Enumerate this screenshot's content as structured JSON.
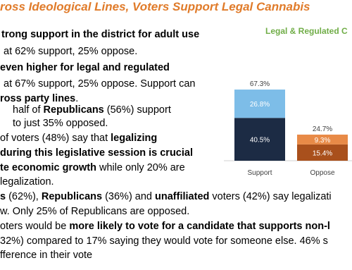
{
  "title": "ross Ideological Lines, Voters Support Legal Cannabis",
  "lines": [
    {
      "runs": [
        {
          "text": "trong support in the district for adult use",
          "bold": true
        }
      ]
    },
    {
      "runs": [
        {
          "text": "at 62% support, 25% oppose.",
          "bold": false
        }
      ]
    },
    {
      "runs": [
        {
          "text": " even higher for legal and regulated",
          "bold": true
        }
      ]
    },
    {
      "runs": [
        {
          "text": "at 67% support, 25% oppose. Support can",
          "bold": false
        }
      ]
    },
    {
      "runs": [
        {
          "text": "ross party lines",
          "bold": true
        },
        {
          "text": ".",
          "bold": false
        }
      ]
    },
    {
      "runs": [
        {
          "text": "half of ",
          "bold": false
        },
        {
          "text": "Republicans",
          "bold": true
        },
        {
          "text": " (56%) support",
          "bold": false
        }
      ]
    },
    {
      "runs": [
        {
          "text": "to just 35% opposed.",
          "bold": false
        }
      ]
    },
    {
      "runs": [
        {
          "text": " of voters (48%) say that ",
          "bold": false
        },
        {
          "text": "legalizing",
          "bold": true
        }
      ]
    },
    {
      "runs": [
        {
          "text": "during this legislative session is crucial",
          "bold": true
        }
      ]
    },
    {
      "runs": [
        {
          "text": "te economic growth",
          "bold": true
        },
        {
          "text": " while only 20% are",
          "bold": false
        }
      ]
    },
    {
      "runs": [
        {
          "text": " legalization.",
          "bold": false
        }
      ]
    },
    {
      "runs": [
        {
          "text": "s",
          "bold": true
        },
        {
          "text": " (62%), ",
          "bold": false
        },
        {
          "text": "Republicans",
          "bold": true
        },
        {
          "text": " (36%) and ",
          "bold": false
        },
        {
          "text": "unaffiliated",
          "bold": true
        },
        {
          "text": " voters (42%) say legalizati",
          "bold": false
        }
      ]
    },
    {
      "runs": [
        {
          "text": "w. Only 25% of Republicans are opposed.",
          "bold": false
        }
      ]
    },
    {
      "runs": [
        {
          "text": "oters would be ",
          "bold": false
        },
        {
          "text": "more likely to vote for a candidate that supports non-l",
          "bold": true
        }
      ]
    },
    {
      "runs": [
        {
          "text": "32%) compared to 17% saying they would vote for someone else. 46% s",
          "bold": false
        }
      ]
    },
    {
      "runs": [
        {
          "text": "fference in their vote",
          "bold": false
        }
      ]
    }
  ],
  "chart_data": {
    "type": "stacked_bar",
    "title": "Legal & Regulated C",
    "title_color": "#70ad47",
    "categories": [
      "Support",
      "Oppose"
    ],
    "series": [
      {
        "colors": [
          "#1c2b44",
          "#a9501c"
        ],
        "values": [
          40.5,
          15.4
        ],
        "value_labels": [
          "40.5%",
          "15.4%"
        ]
      },
      {
        "colors": [
          "#7dbde8",
          "#e88a47"
        ],
        "values": [
          26.8,
          9.3
        ],
        "value_labels": [
          "26.8%",
          "9.3%"
        ]
      }
    ],
    "totals": [
      67.3,
      24.7
    ],
    "total_labels": [
      "67.3%",
      "24.7%"
    ]
  }
}
